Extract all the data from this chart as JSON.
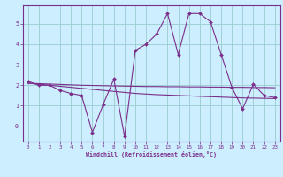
{
  "x": [
    0,
    1,
    2,
    3,
    4,
    5,
    6,
    7,
    8,
    9,
    10,
    11,
    12,
    13,
    14,
    15,
    16,
    17,
    18,
    19,
    20,
    21,
    22,
    23
  ],
  "y_main": [
    2.2,
    2.0,
    2.0,
    1.75,
    1.6,
    1.5,
    -0.3,
    1.05,
    2.3,
    -0.5,
    3.7,
    4.0,
    4.5,
    5.5,
    3.5,
    5.5,
    5.5,
    5.1,
    3.5,
    1.9,
    0.85,
    2.05,
    1.5,
    1.4
  ],
  "y_trend_slope": [
    2.1,
    2.05,
    2.0,
    1.95,
    1.9,
    1.85,
    1.8,
    1.75,
    1.7,
    1.65,
    1.6,
    1.57,
    1.54,
    1.52,
    1.5,
    1.48,
    1.46,
    1.44,
    1.42,
    1.4,
    1.38,
    1.37,
    1.36,
    1.35
  ],
  "y_trend_flat": [
    2.1,
    2.08,
    2.06,
    2.04,
    2.02,
    2.0,
    1.99,
    1.98,
    1.97,
    1.96,
    1.95,
    1.94,
    1.94,
    1.93,
    1.93,
    1.92,
    1.92,
    1.91,
    1.91,
    1.9,
    1.9,
    1.89,
    1.89,
    1.88
  ],
  "line_color": "#7b2d8b",
  "bg_color": "#cceeff",
  "grid_color": "#99cccc",
  "xlabel": "Windchill (Refroidissement éolien,°C)",
  "ylim": [
    -0.75,
    5.9
  ],
  "xlim": [
    -0.5,
    23.5
  ],
  "yticks": [
    0,
    1,
    2,
    3,
    4,
    5
  ],
  "ytick_labels": [
    "-0",
    "1",
    "2",
    "3",
    "4",
    "5"
  ],
  "xticks": [
    0,
    1,
    2,
    3,
    4,
    5,
    6,
    7,
    8,
    9,
    10,
    11,
    12,
    13,
    14,
    15,
    16,
    17,
    18,
    19,
    20,
    21,
    22,
    23
  ]
}
